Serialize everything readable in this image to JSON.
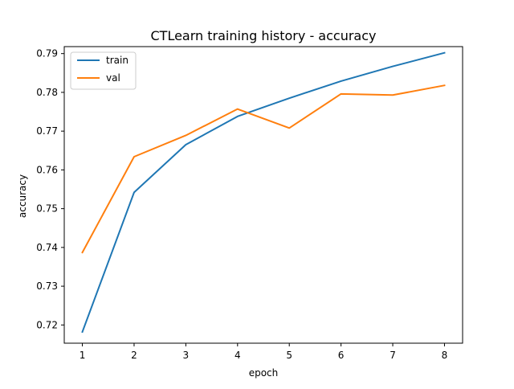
{
  "chart_data": {
    "type": "line",
    "title": "CTLearn training history - accuracy",
    "xlabel": "epoch",
    "ylabel": "accuracy",
    "x": [
      1,
      2,
      3,
      4,
      5,
      6,
      7,
      8
    ],
    "xticks": [
      "1",
      "2",
      "3",
      "4",
      "5",
      "6",
      "7",
      "8"
    ],
    "yticks": [
      "0.72",
      "0.73",
      "0.74",
      "0.75",
      "0.76",
      "0.77",
      "0.78",
      "0.79"
    ],
    "xlim": [
      0.65,
      8.35
    ],
    "ylim": [
      0.7153,
      0.7918
    ],
    "grid": false,
    "legend_position": "upper-left",
    "series": [
      {
        "name": "train",
        "color": "#1f77b4",
        "values": [
          0.7182,
          0.7542,
          0.7665,
          0.7738,
          0.7785,
          0.7829,
          0.7867,
          0.7902
        ]
      },
      {
        "name": "val",
        "color": "#ff7f0e",
        "values": [
          0.7387,
          0.7634,
          0.7689,
          0.7757,
          0.7708,
          0.7796,
          0.7793,
          0.7818
        ]
      }
    ]
  }
}
